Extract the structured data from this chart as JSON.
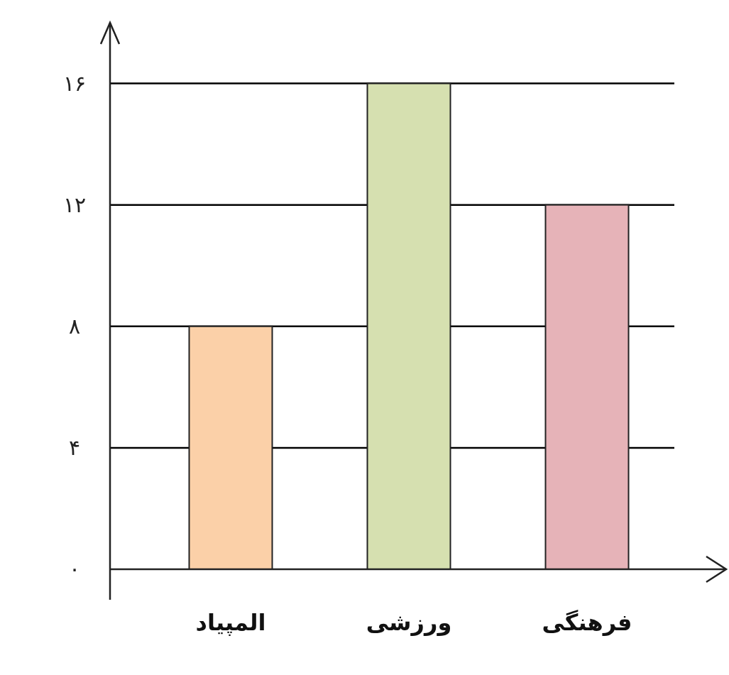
{
  "chart_data": {
    "type": "bar",
    "categories": [
      "المپیاد",
      "ورزشی",
      "فرهنگی"
    ],
    "values": [
      8,
      16,
      12
    ],
    "colors": [
      "#fbd0a8",
      "#d6e0b0",
      "#e6b3b8"
    ],
    "ylim": [
      0,
      18
    ],
    "yticks": [
      {
        "value": 0,
        "label": "۰"
      },
      {
        "value": 4,
        "label": "۴"
      },
      {
        "value": 8,
        "label": "۸"
      },
      {
        "value": 12,
        "label": "۱۲"
      },
      {
        "value": 16,
        "label": "۱۶"
      }
    ],
    "grid": "y",
    "legend": false
  }
}
